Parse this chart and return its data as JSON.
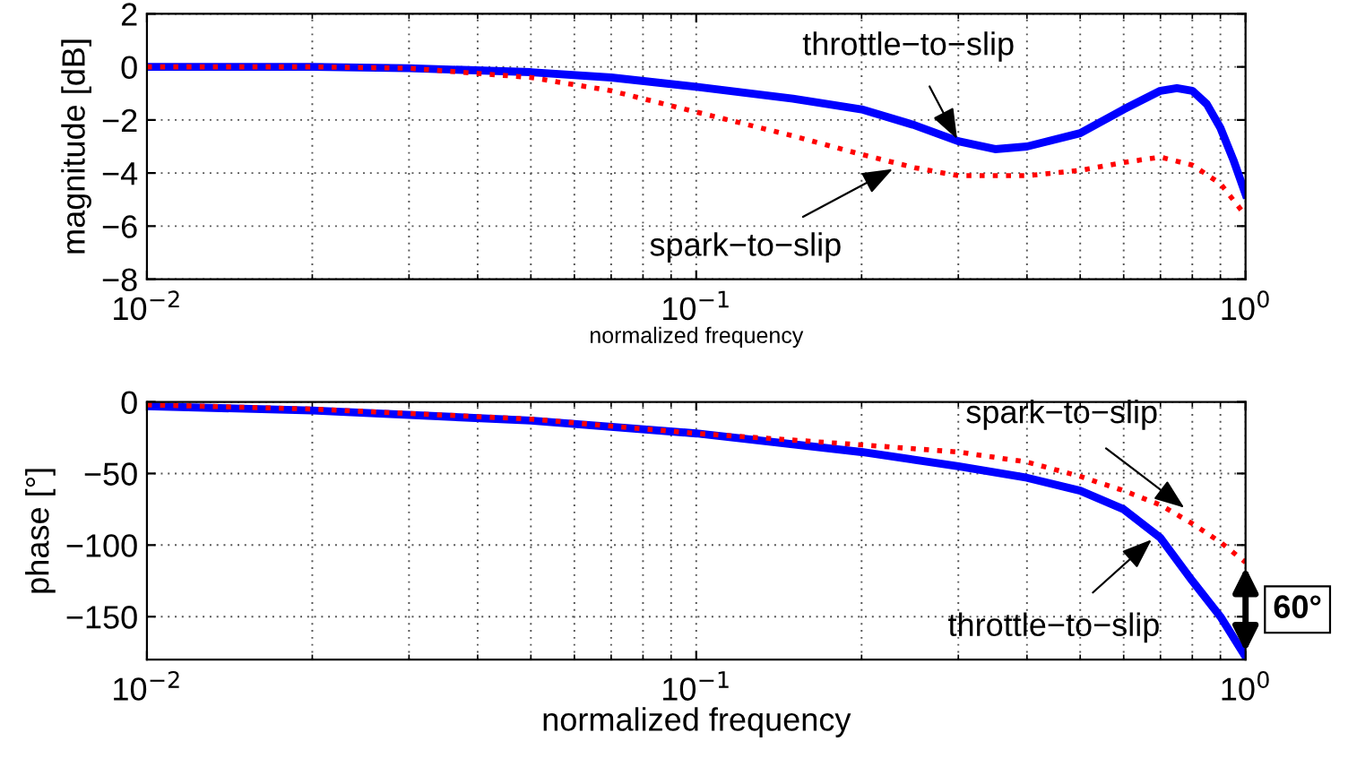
{
  "chart_data": [
    {
      "type": "line",
      "xlabel": "normalized frequency",
      "ylabel": "magnitude [dB]",
      "log": "x",
      "grid": true,
      "legend": false,
      "xlim": [
        0.01,
        1
      ],
      "xticks": [
        {
          "value": 0.01,
          "label": "10$^{−2}$"
        },
        {
          "value": 0.1,
          "label": "10$^{−1}$"
        },
        {
          "value": 1,
          "label": "10$^{0}$"
        }
      ],
      "ylim": [
        -8,
        2
      ],
      "yticks": [
        -8,
        -6,
        -4,
        -2,
        0,
        2
      ],
      "series": [
        {
          "color": "#0000ff",
          "line_style": "solid",
          "x": [
            0.01,
            0.02,
            0.03,
            0.05,
            0.07,
            0.1,
            0.15,
            0.2,
            0.25,
            0.3,
            0.35,
            0.4,
            0.5,
            0.6,
            0.7,
            0.75,
            0.8,
            0.85,
            0.9,
            0.95,
            1.0
          ],
          "values": [
            0,
            0,
            -0.05,
            -0.2,
            -0.4,
            -0.75,
            -1.2,
            -1.6,
            -2.2,
            -2.8,
            -3.1,
            -3.0,
            -2.5,
            -1.6,
            -0.9,
            -0.8,
            -0.9,
            -1.4,
            -2.3,
            -3.5,
            -4.8
          ]
        },
        {
          "color": "#ff0000",
          "line_style": "dotted",
          "x": [
            0.01,
            0.02,
            0.03,
            0.05,
            0.07,
            0.1,
            0.15,
            0.2,
            0.25,
            0.3,
            0.4,
            0.5,
            0.6,
            0.7,
            0.8,
            0.9,
            1.0
          ],
          "values": [
            0,
            0,
            -0.05,
            -0.4,
            -0.9,
            -1.7,
            -2.6,
            -3.3,
            -3.8,
            -4.1,
            -4.1,
            -3.9,
            -3.6,
            -3.4,
            -3.7,
            -4.4,
            -5.6
          ]
        }
      ],
      "annotations": [
        {
          "text": "throttle−to−slip",
          "x": 0.3,
          "y": -2.8
        },
        {
          "text": "spark−to−slip",
          "x": 0.23,
          "y": -3.8
        }
      ]
    },
    {
      "type": "line",
      "xlabel": "normalized frequency",
      "ylabel": "phase [°]",
      "log": "x",
      "grid": true,
      "legend": false,
      "xlim": [
        0.01,
        1
      ],
      "xticks": [
        {
          "value": 0.01,
          "label": "10$^{−2}$"
        },
        {
          "value": 0.1,
          "label": "10$^{−1}$"
        },
        {
          "value": 1,
          "label": "10$^{0}$"
        }
      ],
      "ylim": [
        -180,
        0
      ],
      "yticks": [
        -150,
        -100,
        -50,
        0
      ],
      "series": [
        {
          "color": "#0000ff",
          "line_style": "solid",
          "x": [
            0.01,
            0.02,
            0.05,
            0.1,
            0.2,
            0.3,
            0.4,
            0.5,
            0.6,
            0.7,
            0.8,
            0.9,
            1.0
          ],
          "values": [
            -3,
            -6,
            -13,
            -22,
            -35,
            -45,
            -53,
            -62,
            -75,
            -95,
            -125,
            -150,
            -178
          ]
        },
        {
          "color": "#ff0000",
          "line_style": "dotted",
          "x": [
            0.01,
            0.02,
            0.05,
            0.1,
            0.2,
            0.3,
            0.4,
            0.5,
            0.6,
            0.7,
            0.8,
            0.9,
            1.0
          ],
          "values": [
            -2,
            -5,
            -12,
            -22,
            -30,
            -35,
            -42,
            -52,
            -62,
            -72,
            -85,
            -98,
            -112
          ]
        }
      ],
      "annotations": [
        {
          "text": "spark−to−slip",
          "x": 0.78,
          "y": -75
        },
        {
          "text": "throttle−to−slip",
          "x": 0.68,
          "y": -95
        },
        "60°"
      ]
    }
  ]
}
